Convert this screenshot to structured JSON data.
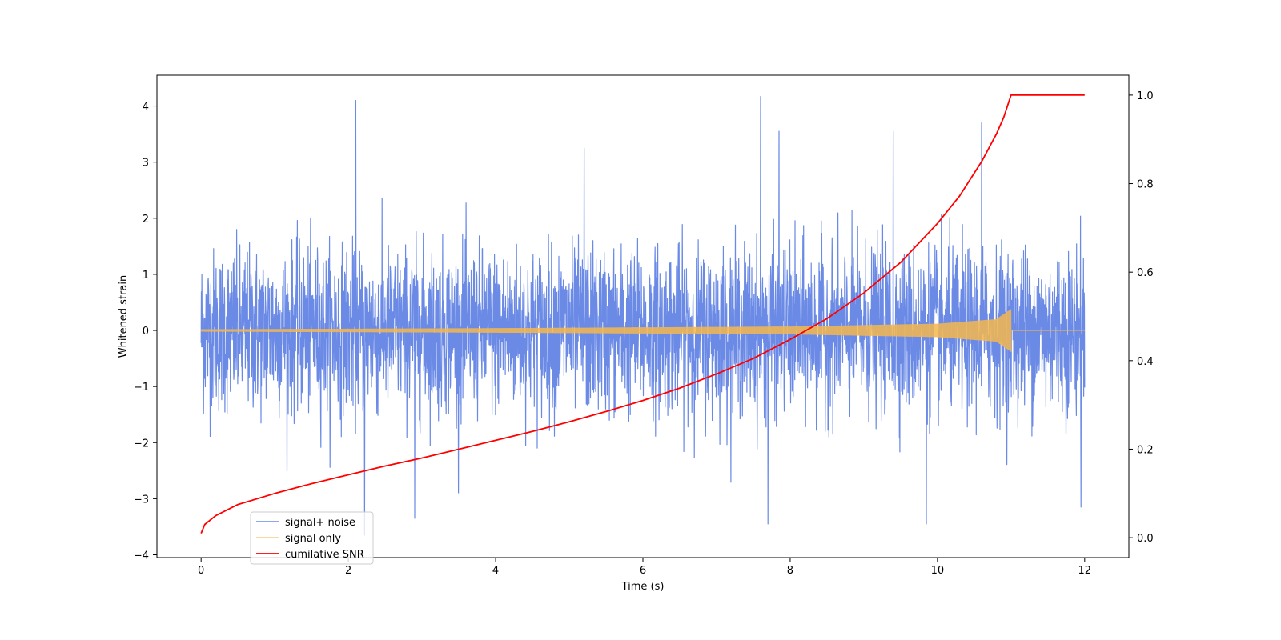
{
  "chart_data": {
    "type": "line",
    "title": "",
    "xlabel": "Time (s)",
    "ylabel": "Whitened strain",
    "y2label": "",
    "xlim": [
      -0.6,
      12.6
    ],
    "ylim": [
      -4.05,
      4.55
    ],
    "y2lim": [
      -0.045,
      1.045
    ],
    "x_ticks": [
      0,
      2,
      4,
      6,
      8,
      10,
      12
    ],
    "y_ticks": [
      -4,
      -3,
      -2,
      -1,
      0,
      1,
      2,
      3,
      4
    ],
    "y2_ticks": [
      0.0,
      0.2,
      0.4,
      0.6,
      0.8,
      1.0
    ],
    "x_tick_labels": [
      "0",
      "2",
      "4",
      "6",
      "8",
      "10",
      "12"
    ],
    "y_tick_labels": [
      "−4",
      "−3",
      "−2",
      "−1",
      "0",
      "1",
      "2",
      "3",
      "4"
    ],
    "y2_tick_labels": [
      "0.0",
      "0.2",
      "0.4",
      "0.6",
      "0.8",
      "1.0"
    ],
    "grid": false,
    "legend_position": "lower-left",
    "series": [
      {
        "name": "signal+ noise",
        "axis": "left",
        "color": "#6a8ae6",
        "kind": "noisy-band",
        "x_range": [
          0,
          12
        ],
        "typical_amplitude": 1.6,
        "peaks": [
          {
            "x": 2.1,
            "y": 4.1
          },
          {
            "x": 7.6,
            "y": 4.17
          },
          {
            "x": 2.22,
            "y": -3.65
          },
          {
            "x": 7.7,
            "y": -3.45
          },
          {
            "x": 2.9,
            "y": -3.35
          },
          {
            "x": 11.95,
            "y": -3.15
          },
          {
            "x": 5.2,
            "y": 3.25
          },
          {
            "x": 7.85,
            "y": 3.55
          },
          {
            "x": 10.6,
            "y": 3.7
          },
          {
            "x": 9.4,
            "y": 3.55
          },
          {
            "x": 9.85,
            "y": -3.45
          }
        ]
      },
      {
        "name": "signal only",
        "axis": "left",
        "color": "#f5b74e",
        "kind": "chirp",
        "x_range": [
          0,
          11
        ],
        "envelope": [
          {
            "x": 0,
            "y": 0.02
          },
          {
            "x": 4,
            "y": 0.04
          },
          {
            "x": 8,
            "y": 0.07
          },
          {
            "x": 10,
            "y": 0.12
          },
          {
            "x": 10.8,
            "y": 0.2
          },
          {
            "x": 11,
            "y": 0.38
          }
        ],
        "after_merger": {
          "x_range": [
            11,
            12
          ],
          "y": 0
        }
      },
      {
        "name": "cumilative SNR",
        "axis": "right",
        "color": "#ff0000",
        "kind": "line",
        "x": [
          0,
          0.05,
          0.2,
          0.5,
          1,
          1.5,
          2,
          2.5,
          3,
          3.5,
          4,
          4.5,
          5,
          5.5,
          6,
          6.5,
          7,
          7.5,
          8,
          8.5,
          9,
          9.5,
          10,
          10.3,
          10.6,
          10.8,
          10.9,
          11,
          12
        ],
        "y": [
          0.01,
          0.03,
          0.05,
          0.075,
          0.1,
          0.122,
          0.142,
          0.162,
          0.18,
          0.2,
          0.22,
          0.24,
          0.262,
          0.285,
          0.31,
          0.338,
          0.37,
          0.405,
          0.448,
          0.495,
          0.553,
          0.622,
          0.71,
          0.772,
          0.85,
          0.912,
          0.95,
          1.0,
          1.0
        ]
      }
    ]
  }
}
